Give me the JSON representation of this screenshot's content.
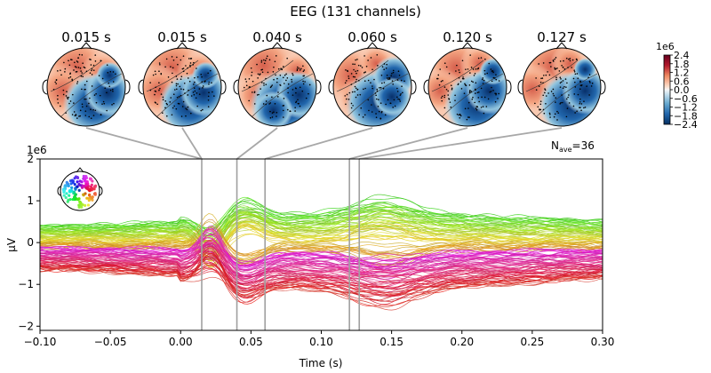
{
  "chart_data": {
    "type": "line",
    "title": "EEG (131 channels)",
    "topomap_times": [
      "0.015 s",
      "0.015 s",
      "0.040 s",
      "0.060 s",
      "0.120 s",
      "0.127 s"
    ],
    "topomap_time_values": [
      0.015,
      0.015,
      0.04,
      0.06,
      0.12,
      0.127
    ],
    "colorbar": {
      "exponent_label": "1e6",
      "ticks": [
        "2.4",
        "1.8",
        "1.2",
        "0.6",
        "0.0",
        "−0.6",
        "−1.2",
        "−1.8",
        "−2.4"
      ],
      "tick_values": [
        2.4,
        1.8,
        1.2,
        0.6,
        0.0,
        -0.6,
        -1.2,
        -1.8,
        -2.4
      ],
      "range": [
        -2.4,
        2.4
      ],
      "colormap": "RdBu_r"
    },
    "nave_label": "N",
    "nave_sub": "ave",
    "nave_value": "=36",
    "y_exponent_label": "1e6",
    "xlabel": "Time (s)",
    "ylabel": "µV",
    "xlim": [
      -0.1,
      0.3
    ],
    "ylim": [
      -2.1,
      2.0
    ],
    "x_ticks": [
      "−0.10",
      "−0.05",
      "0.00",
      "0.05",
      "0.10",
      "0.15",
      "0.20",
      "0.25",
      "0.30"
    ],
    "x_tick_values": [
      -0.1,
      -0.05,
      0.0,
      0.05,
      0.1,
      0.15,
      0.2,
      0.25,
      0.3
    ],
    "y_ticks": [
      "2",
      "1",
      "0",
      "−1",
      "−2"
    ],
    "y_tick_values": [
      2,
      1,
      0,
      -1,
      -2
    ],
    "n_channels": 131,
    "vlines": [
      0.015,
      0.04,
      0.06,
      0.12,
      0.127
    ],
    "series_description": "131 butterfly traces, colored by sensor location"
  }
}
